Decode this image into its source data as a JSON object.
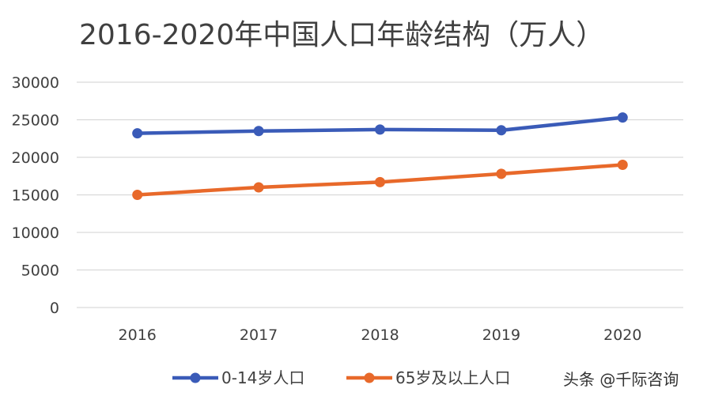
{
  "chart_data": {
    "type": "line",
    "title": "2016-2020年中国人口年龄结构（万人）",
    "categories": [
      "2016",
      "2017",
      "2018",
      "2019",
      "2020"
    ],
    "series": [
      {
        "name": "0-14岁人口",
        "values": [
          23200,
          23500,
          23700,
          23600,
          25300
        ],
        "color": "#3A5BB8"
      },
      {
        "name": "65岁及以上人口",
        "values": [
          15000,
          16000,
          16700,
          17800,
          19000
        ],
        "color": "#E8692A"
      }
    ],
    "ylim": [
      0,
      30000
    ],
    "yticks": [
      "0",
      "5000",
      "10000",
      "15000",
      "20000",
      "25000",
      "30000"
    ],
    "grid": true,
    "legend": "bottom"
  },
  "watermark": "头条 @千际咨询"
}
